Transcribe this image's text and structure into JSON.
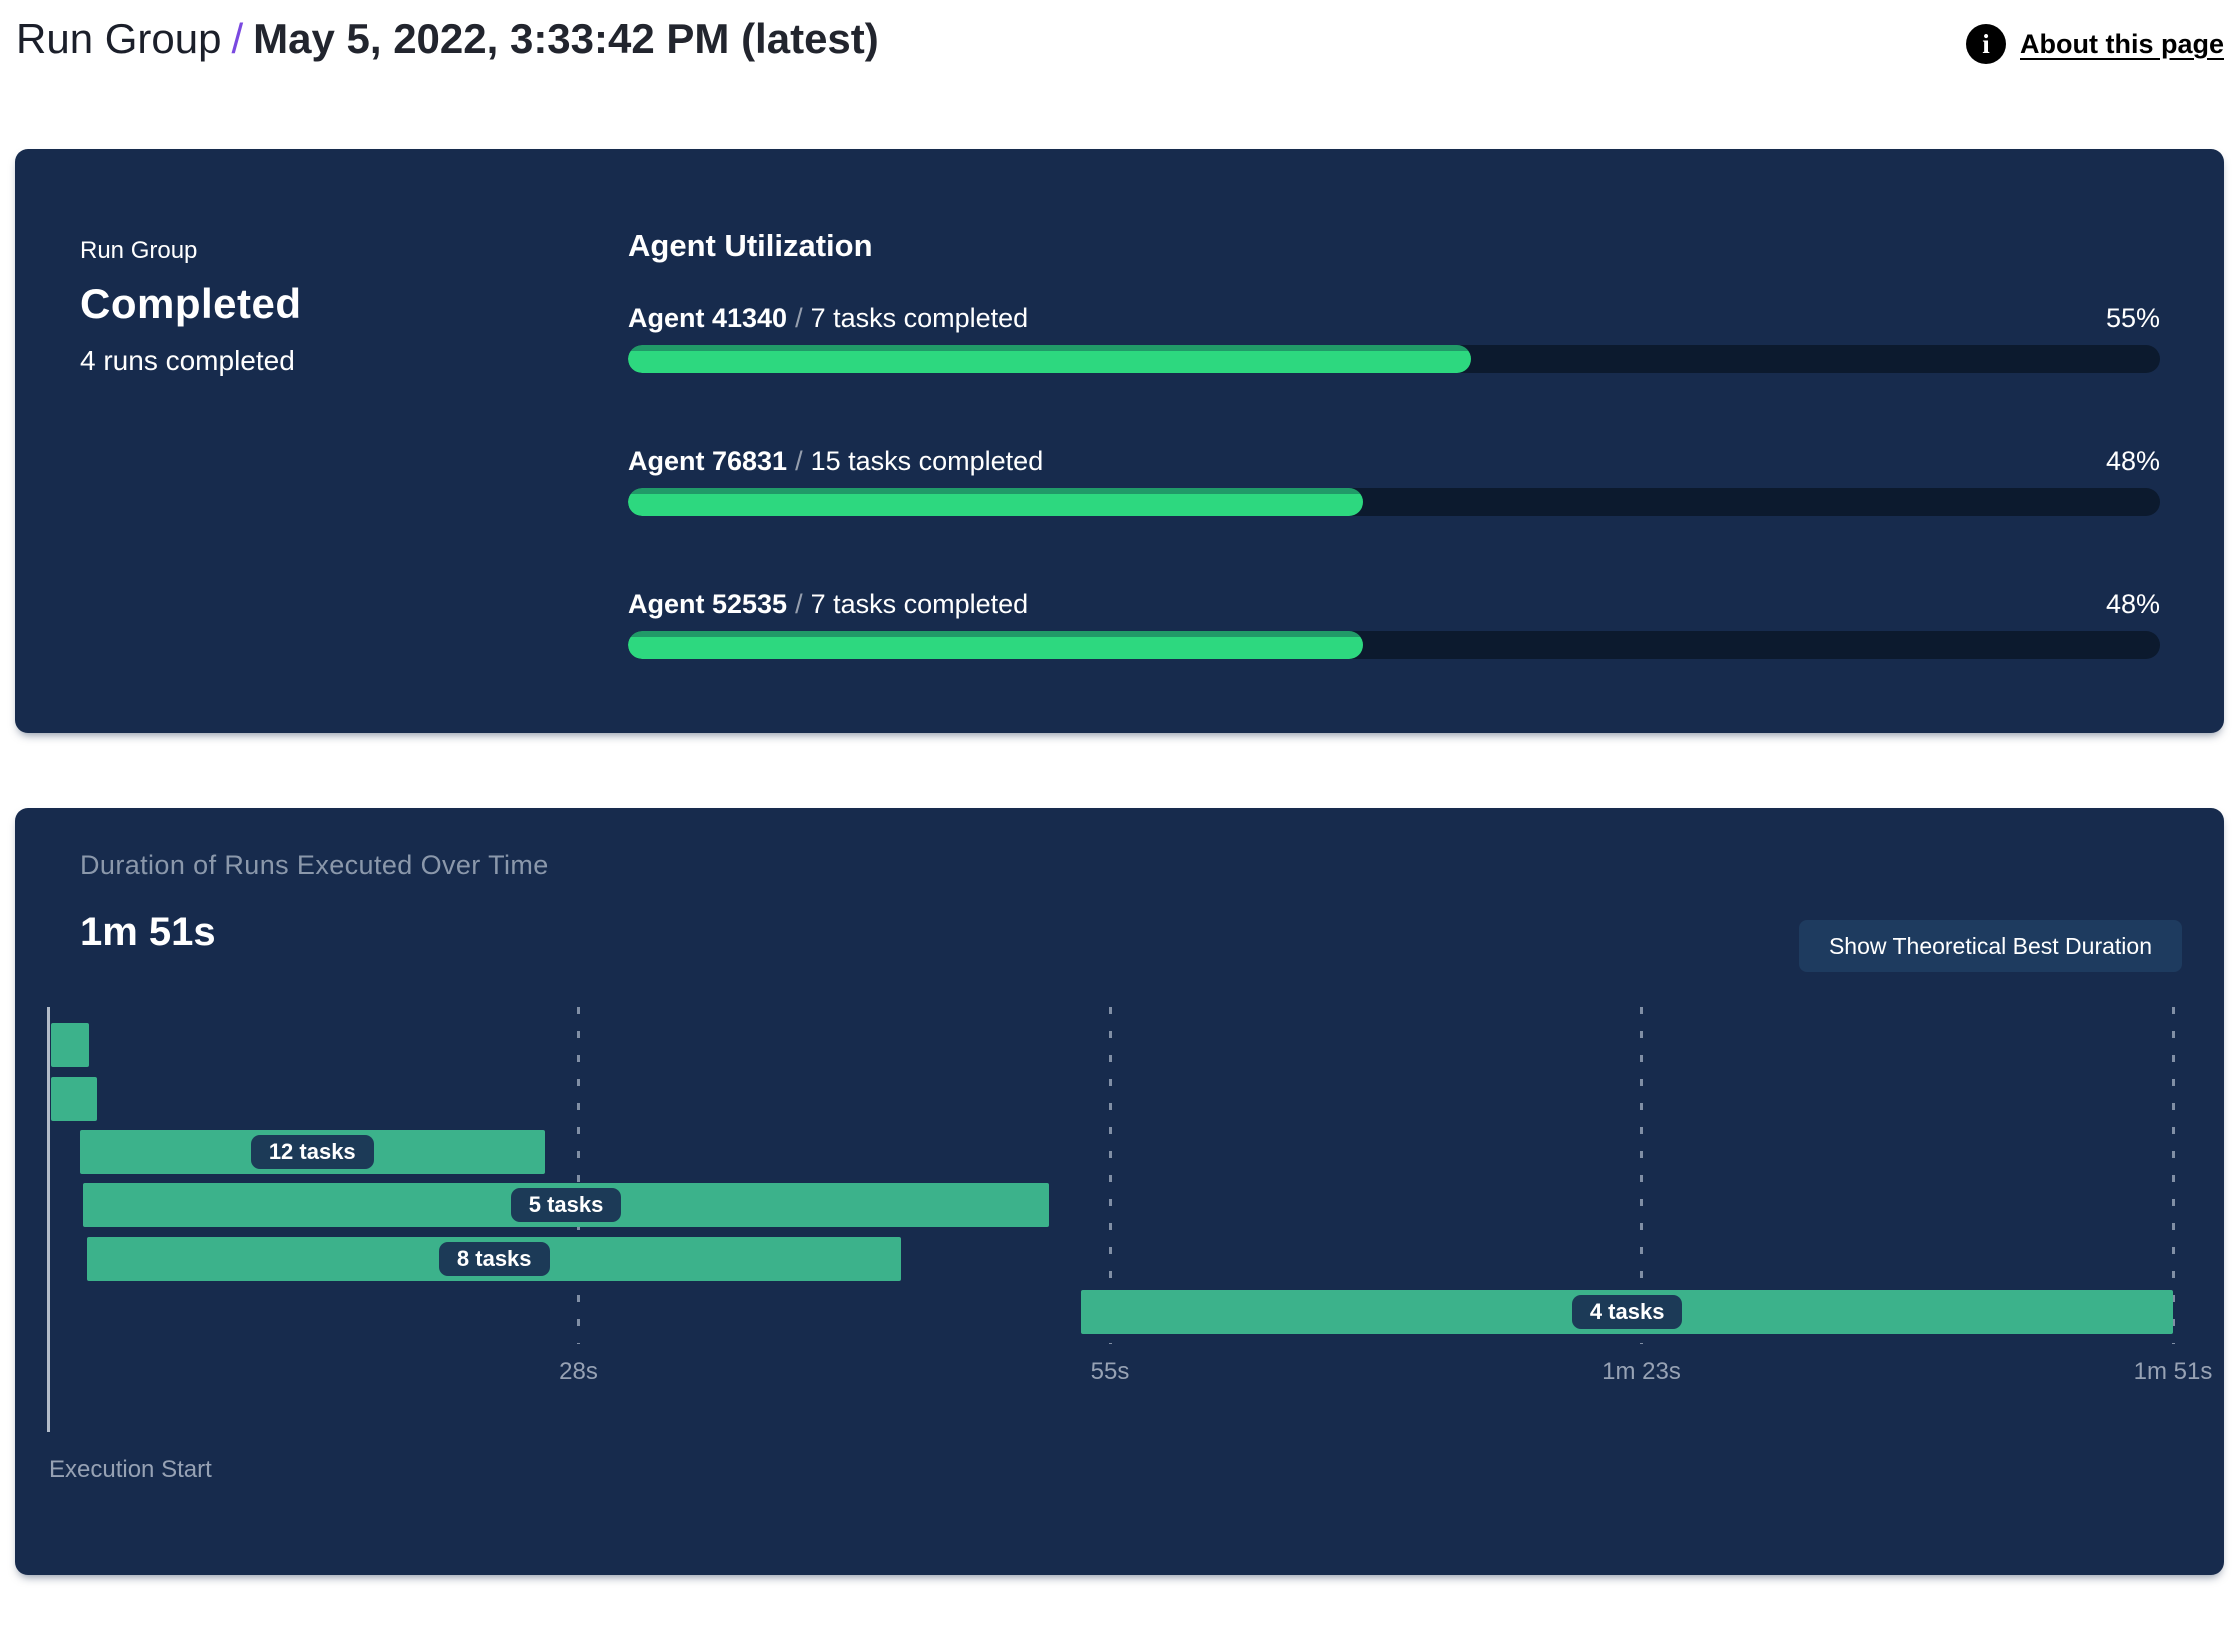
{
  "header": {
    "breadcrumb": "Run Group",
    "separator": "/",
    "title": "May 5, 2022, 3:33:42 PM (latest)",
    "about_link": "About this page",
    "info_icon": "i"
  },
  "summary_panel": {
    "group_label": "Run Group",
    "status": "Completed",
    "runs_completed": "4 runs completed",
    "utilization": {
      "heading": "Agent Utilization",
      "separator": "/",
      "agents": [
        {
          "name": "Agent 41340",
          "tasks": "7 tasks completed",
          "percent": 55
        },
        {
          "name": "Agent 76831",
          "tasks": "15 tasks completed",
          "percent": 48
        },
        {
          "name": "Agent 52535",
          "tasks": "7 tasks completed",
          "percent": 48
        }
      ]
    }
  },
  "duration_panel": {
    "subtitle": "Duration of Runs Executed Over Time",
    "total_duration": "1m 51s",
    "button_label": "Show Theoretical Best Duration",
    "execution_start_label": "Execution Start"
  },
  "chart_data": {
    "type": "gantt",
    "title": "Duration of Runs Executed Over Time",
    "time_axis_seconds": [
      0,
      111
    ],
    "ticks": [
      {
        "seconds": 27.75,
        "label": "28s"
      },
      {
        "seconds": 55.5,
        "label": "55s"
      },
      {
        "seconds": 83.25,
        "label": "1m 23s"
      },
      {
        "seconds": 111,
        "label": "1m 51s"
      }
    ],
    "runs": [
      {
        "start_s": 0.2,
        "end_s": 2.2,
        "label": ""
      },
      {
        "start_s": 0.2,
        "end_s": 2.6,
        "label": ""
      },
      {
        "start_s": 1.7,
        "end_s": 26.0,
        "label": "12 tasks"
      },
      {
        "start_s": 1.9,
        "end_s": 52.3,
        "label": "5 tasks"
      },
      {
        "start_s": 2.1,
        "end_s": 44.6,
        "label": "8 tasks"
      },
      {
        "start_s": 54.0,
        "end_s": 111.0,
        "label": "4 tasks"
      }
    ],
    "colors": {
      "bar_green": "#3cb28b",
      "progress_green": "#2dd87f",
      "panel_navy": "#172b4d",
      "pill_navy": "#1c3a57",
      "accent_purple": "#7a49e0"
    }
  }
}
